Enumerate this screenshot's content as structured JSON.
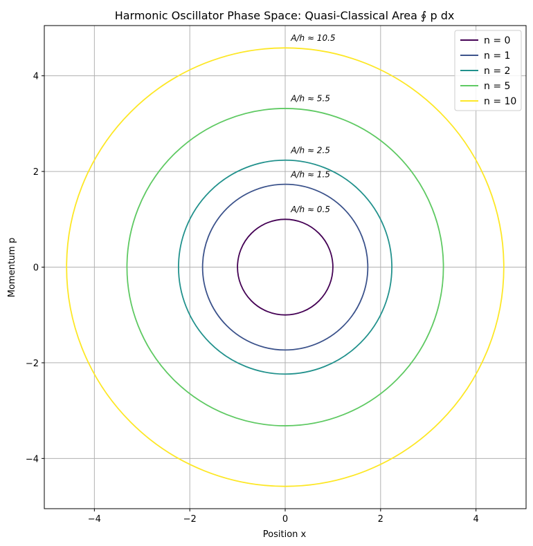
{
  "chart_data": {
    "type": "line",
    "title": "Harmonic Oscillator Phase Space: Quasi-Classical Area ∮ p dx",
    "xlabel": "Position x",
    "ylabel": "Momentum p",
    "xlim": [
      -5.05,
      5.05
    ],
    "ylim": [
      -5.05,
      5.05
    ],
    "xticks": [
      -4,
      -2,
      0,
      2,
      4
    ],
    "yticks": [
      -4,
      -2,
      0,
      2,
      4
    ],
    "xtick_labels": [
      "−4",
      "−2",
      "0",
      "2",
      "4"
    ],
    "ytick_labels": [
      "−4",
      "−2",
      "0",
      "2",
      "4"
    ],
    "grid": true,
    "legend_position": "top-right",
    "series": [
      {
        "name": "n = 0",
        "n": 0,
        "radius": 1.0,
        "color": "#440154",
        "annotation": "A/h ≈ 0.5"
      },
      {
        "name": "n = 1",
        "n": 1,
        "radius": 1.732,
        "color": "#3b528b",
        "annotation": "A/h ≈ 1.5"
      },
      {
        "name": "n = 2",
        "n": 2,
        "radius": 2.236,
        "color": "#21918c",
        "annotation": "A/h ≈ 2.5"
      },
      {
        "name": "n = 5",
        "n": 5,
        "radius": 3.317,
        "color": "#5ec962",
        "annotation": "A/h ≈ 5.5"
      },
      {
        "name": "n = 10",
        "n": 10,
        "radius": 4.583,
        "color": "#fde725",
        "annotation": "A/h ≈ 10.5"
      }
    ]
  }
}
